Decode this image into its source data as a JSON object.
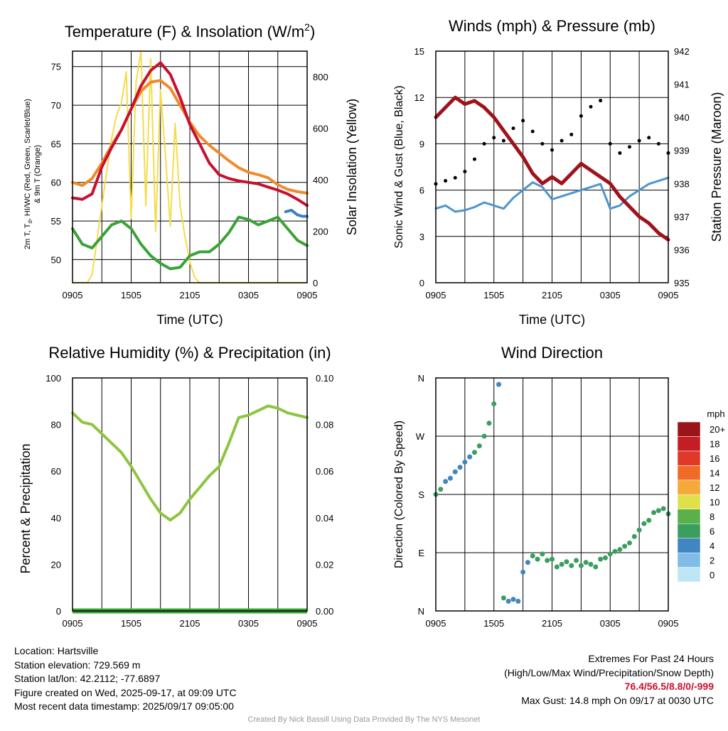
{
  "charts": {
    "temperature": {
      "title": "Temperature (F) & Insolation (W/m",
      "title_sup": "2",
      "title_close": ")",
      "xlabel": "Time (UTC)",
      "ylabel_lines": [
        "2m T, T",
        "d",
        ", HI/WC (Red, Green, Scarlet/Blue)",
        "& 9m T (Orange)"
      ],
      "ylabel2": "Solar Insolation (Yellow)",
      "xticks": [
        "0905",
        "1505",
        "2105",
        "0305",
        "0905"
      ],
      "yticks": [
        "50",
        "55",
        "60",
        "65",
        "70",
        "75"
      ],
      "y2ticks": [
        "0",
        "200",
        "400",
        "600",
        "800"
      ]
    },
    "winds": {
      "title": "Winds (mph) & Pressure (mb)",
      "xlabel": "Time (UTC)",
      "ylabel": "Sonic Wind & Gust (Blue, Black)",
      "ylabel2": "Station Pressure (Maroon)",
      "xticks": [
        "0905",
        "1505",
        "2105",
        "0305",
        "0905"
      ],
      "yticks": [
        "0",
        "3",
        "6",
        "9",
        "12",
        "15"
      ],
      "y2ticks": [
        "935",
        "936",
        "937",
        "938",
        "939",
        "940",
        "941",
        "942"
      ]
    },
    "humidity": {
      "title": "Relative Humidity (%) & Precipitation (in)",
      "ylabel": "Percent & Precipitation",
      "xticks": [
        "0905",
        "1505",
        "2105",
        "0305",
        "0905"
      ],
      "yticks": [
        "0",
        "20",
        "40",
        "60",
        "80",
        "100"
      ],
      "y2ticks": [
        "0.00",
        "0.02",
        "0.04",
        "0.06",
        "0.08",
        "0.10"
      ]
    },
    "direction": {
      "title": "Wind Direction",
      "ylabel": "Direction (Colored By Speed)",
      "xticks": [
        "0905",
        "1505",
        "2105",
        "0305",
        "0905"
      ],
      "yticks": [
        "N",
        "E",
        "S",
        "W",
        "N"
      ],
      "colorbar_title": "mph",
      "colorbar_labels": [
        "0",
        "2",
        "4",
        "6",
        "8",
        "10",
        "12",
        "14",
        "16",
        "18",
        "20+"
      ],
      "colorbar_colors": [
        "#bfe6f7",
        "#7fbde6",
        "#3f86c2",
        "#3a9e5e",
        "#5ab04a",
        "#dfe04a",
        "#f5a93b",
        "#ef6b27",
        "#e0392a",
        "#c41e24",
        "#9a1419"
      ]
    }
  },
  "chart_data": [
    {
      "type": "line",
      "title": "Temperature (F) & Insolation (W/m2)",
      "xlabel": "Time (UTC)",
      "ylabel": "2m T, Td, HI/WC (Red, Green, Scarlet/Blue) & 9m T (Orange)",
      "ylabel2": "Solar Insolation (Yellow)",
      "x_hours_utc": [
        "0905",
        "1505",
        "2105",
        "0305",
        "0905"
      ],
      "ylim": [
        47,
        77
      ],
      "y2lim": [
        0,
        900
      ],
      "series": [
        {
          "name": "2m T (Red)",
          "color": "#c8102e",
          "x": [
            0,
            1,
            2,
            3,
            4,
            5,
            6,
            7,
            8,
            9,
            10,
            11,
            12,
            13,
            14,
            15,
            16,
            17,
            18,
            19,
            20,
            21,
            22,
            23,
            24
          ],
          "y": [
            58.0,
            57.8,
            58.5,
            62.0,
            64.5,
            66.8,
            69.5,
            72.5,
            74.5,
            75.5,
            74.0,
            71.0,
            67.5,
            65.0,
            62.5,
            61.0,
            60.5,
            60.2,
            60.0,
            59.8,
            59.4,
            59.0,
            58.5,
            57.8,
            57.0
          ]
        },
        {
          "name": "9m T (Orange)",
          "color": "#f08a2a",
          "x": [
            0,
            1,
            2,
            3,
            4,
            5,
            6,
            7,
            8,
            9,
            10,
            11,
            12,
            13,
            14,
            15,
            16,
            17,
            18,
            19,
            20,
            21,
            22,
            23,
            24
          ],
          "y": [
            60.0,
            59.6,
            60.5,
            62.5,
            64.8,
            66.8,
            69.5,
            71.8,
            73.0,
            73.2,
            72.2,
            70.0,
            67.8,
            66.0,
            64.8,
            63.8,
            62.8,
            61.9,
            61.3,
            61.0,
            60.6,
            59.7,
            59.1,
            58.8,
            58.6
          ]
        },
        {
          "name": "2m Td (Green)",
          "color": "#3aa335",
          "x": [
            0,
            1,
            2,
            3,
            4,
            5,
            6,
            7,
            8,
            9,
            10,
            11,
            12,
            13,
            14,
            15,
            16,
            17,
            18,
            19,
            20,
            21,
            22,
            23,
            24
          ],
          "y": [
            54.0,
            52.0,
            51.5,
            53.0,
            54.5,
            55.0,
            54.0,
            52.0,
            50.5,
            49.5,
            48.8,
            49.0,
            50.5,
            51.0,
            51.0,
            52.0,
            53.5,
            55.5,
            55.2,
            54.5,
            55.0,
            55.5,
            54.0,
            52.5,
            51.8
          ]
        },
        {
          "name": "HI/WC (Blue)",
          "color": "#3f7fc2",
          "x": [
            21.8,
            22.4,
            23.0,
            23.5,
            24
          ],
          "y": [
            56.2,
            56.4,
            55.8,
            55.6,
            55.6
          ]
        },
        {
          "name": "Solar Insolation (Yellow)",
          "axis": "right",
          "color": "#f5dc4a",
          "x": [
            0,
            1,
            1.5,
            2,
            3,
            3.5,
            4,
            4.5,
            5,
            5.5,
            6,
            6.5,
            7,
            7.5,
            8,
            8.5,
            9,
            9.5,
            10,
            10.5,
            11,
            11.5,
            12,
            12.5,
            13,
            14,
            24
          ],
          "y": [
            0,
            0,
            0,
            30,
            300,
            430,
            560,
            650,
            700,
            820,
            250,
            780,
            900,
            300,
            870,
            200,
            750,
            500,
            220,
            620,
            300,
            180,
            80,
            20,
            0,
            0,
            0
          ]
        }
      ]
    },
    {
      "type": "line",
      "title": "Winds (mph) & Pressure (mb)",
      "xlabel": "Time (UTC)",
      "ylabel": "Sonic Wind & Gust (Blue, Black)",
      "ylabel2": "Station Pressure (Maroon)",
      "x_hours_utc": [
        "0905",
        "1505",
        "2105",
        "0305",
        "0905"
      ],
      "ylim": [
        0,
        15
      ],
      "y2lim": [
        935,
        942
      ],
      "series": [
        {
          "name": "Sonic Wind (Blue)",
          "color": "#4d95cf",
          "x": [
            0,
            1,
            2,
            3,
            4,
            5,
            6,
            7,
            8,
            9,
            10,
            11,
            12,
            13,
            14,
            15,
            16,
            17,
            18,
            19,
            20,
            21,
            22,
            23,
            24
          ],
          "y": [
            4.8,
            5.0,
            4.6,
            4.7,
            4.9,
            5.2,
            5.0,
            4.8,
            5.5,
            6.0,
            6.5,
            6.2,
            5.4,
            5.6,
            5.8,
            6.0,
            6.2,
            6.4,
            4.8,
            5.0,
            5.6,
            6.0,
            6.4,
            6.6,
            6.8
          ]
        },
        {
          "name": "Gust (Black)",
          "color": "#000000",
          "x": [
            0,
            1,
            2,
            3,
            4,
            5,
            6,
            7,
            8,
            9,
            10,
            11,
            12,
            13,
            14,
            15,
            16,
            17,
            18,
            19,
            20,
            21,
            22,
            23,
            24
          ],
          "y": [
            6.4,
            6.6,
            6.8,
            7.2,
            8.0,
            9.0,
            9.4,
            9.2,
            10.0,
            10.5,
            9.8,
            9.0,
            8.6,
            9.2,
            9.6,
            10.8,
            11.4,
            11.8,
            9.0,
            8.4,
            8.8,
            9.2,
            9.4,
            9.0,
            8.4
          ]
        },
        {
          "name": "Station Pressure (Maroon)",
          "axis": "right",
          "color": "#a0121a",
          "x": [
            0,
            1,
            2,
            3,
            4,
            5,
            6,
            7,
            8,
            9,
            10,
            11,
            12,
            13,
            14,
            15,
            16,
            17,
            18,
            19,
            20,
            21,
            22,
            23,
            24
          ],
          "y": [
            940.0,
            940.3,
            940.6,
            940.4,
            940.5,
            940.3,
            940.0,
            939.6,
            939.2,
            938.8,
            938.3,
            938.0,
            938.2,
            938.0,
            938.3,
            938.6,
            938.4,
            938.2,
            938.0,
            937.6,
            937.3,
            937.0,
            936.8,
            936.5,
            936.3
          ]
        }
      ]
    },
    {
      "type": "line",
      "title": "Relative Humidity (%) & Precipitation (in)",
      "ylabel": "Percent & Precipitation",
      "x_hours_utc": [
        "0905",
        "1505",
        "2105",
        "0305",
        "0905"
      ],
      "ylim": [
        0,
        100
      ],
      "y2lim": [
        0,
        0.1
      ],
      "series": [
        {
          "name": "Relative Humidity",
          "color": "#8cc63f",
          "x": [
            0,
            1,
            2,
            3,
            4,
            5,
            6,
            7,
            8,
            9,
            10,
            11,
            12,
            13,
            14,
            15,
            16,
            17,
            18,
            19,
            20,
            21,
            22,
            23,
            24
          ],
          "y": [
            85,
            81,
            80,
            76,
            72,
            68,
            62,
            55,
            48,
            42,
            39,
            42,
            48,
            53,
            58,
            62,
            72,
            83,
            84,
            86,
            88,
            87,
            85,
            84,
            83
          ]
        },
        {
          "name": "Precipitation",
          "axis": "right",
          "color": "#3aa335",
          "x": [
            0,
            24
          ],
          "y": [
            0.0,
            0.0
          ]
        }
      ]
    },
    {
      "type": "scatter",
      "title": "Wind Direction",
      "ylabel": "Direction (Colored By Speed)",
      "x_hours_utc": [
        "0905",
        "1505",
        "2105",
        "0305",
        "0905"
      ],
      "ylim": [
        0,
        360
      ],
      "y_tick_labels": [
        "N",
        "E",
        "S",
        "W",
        "N"
      ],
      "colorbar": {
        "title": "mph",
        "labels": [
          "0",
          "2",
          "4",
          "6",
          "8",
          "10",
          "12",
          "14",
          "16",
          "18",
          "20+"
        ]
      },
      "series": [
        {
          "name": "direction",
          "x": [
            0,
            0.5,
            1,
            1.5,
            2,
            2.5,
            3,
            3.5,
            4,
            4.5,
            5,
            5.5,
            6,
            6.5,
            7,
            7.5,
            8,
            8.5,
            9,
            9.5,
            10,
            10.5,
            11,
            11.5,
            12,
            12.5,
            13,
            13.5,
            14,
            14.5,
            15,
            15.5,
            16,
            16.5,
            17,
            17.5,
            18,
            18.5,
            19,
            19.5,
            20,
            20.5,
            21,
            21.5,
            22,
            22.5,
            23,
            23.5,
            24
          ],
          "y": [
            180,
            188,
            200,
            205,
            215,
            222,
            230,
            238,
            245,
            255,
            270,
            290,
            320,
            350,
            20,
            15,
            18,
            15,
            60,
            75,
            85,
            80,
            88,
            78,
            80,
            68,
            72,
            76,
            70,
            78,
            70,
            75,
            72,
            68,
            80,
            82,
            88,
            92,
            95,
            100,
            105,
            115,
            125,
            135,
            140,
            152,
            155,
            158,
            150
          ],
          "speed": [
            5,
            5,
            4,
            4,
            4,
            4,
            4,
            4,
            5,
            5,
            5,
            5,
            6,
            4,
            5,
            4,
            3,
            3,
            4,
            4,
            5,
            6,
            6,
            6,
            6,
            6,
            6,
            6,
            6,
            6,
            6,
            6,
            6,
            6,
            6,
            6,
            6,
            6,
            6,
            6,
            6,
            5,
            5,
            5,
            5,
            6,
            6,
            6,
            6
          ]
        }
      ]
    }
  ],
  "info": {
    "location": "Location: Hartsville",
    "elevation": "Station elevation: 729.569 m",
    "latlon": "Station lat/lon: 42.2112; -77.6897",
    "created": "Figure created on Wed, 2025-09-17, at 09:09 UTC",
    "recent": "Most recent data timestamp: 2025/09/17 09:05:00"
  },
  "extremes": {
    "title": "Extremes For Past 24 Hours",
    "subtitle": "(High/Low/Max Wind/Precipitation/Snow Depth)",
    "values": "76.4/56.5/8.8/0/-999",
    "max_gust": "Max Gust: 14.8 mph On 09/17 at 0030 UTC"
  },
  "credit": "Created By Nick Bassill Using Data Provided By The NYS Mesonet"
}
